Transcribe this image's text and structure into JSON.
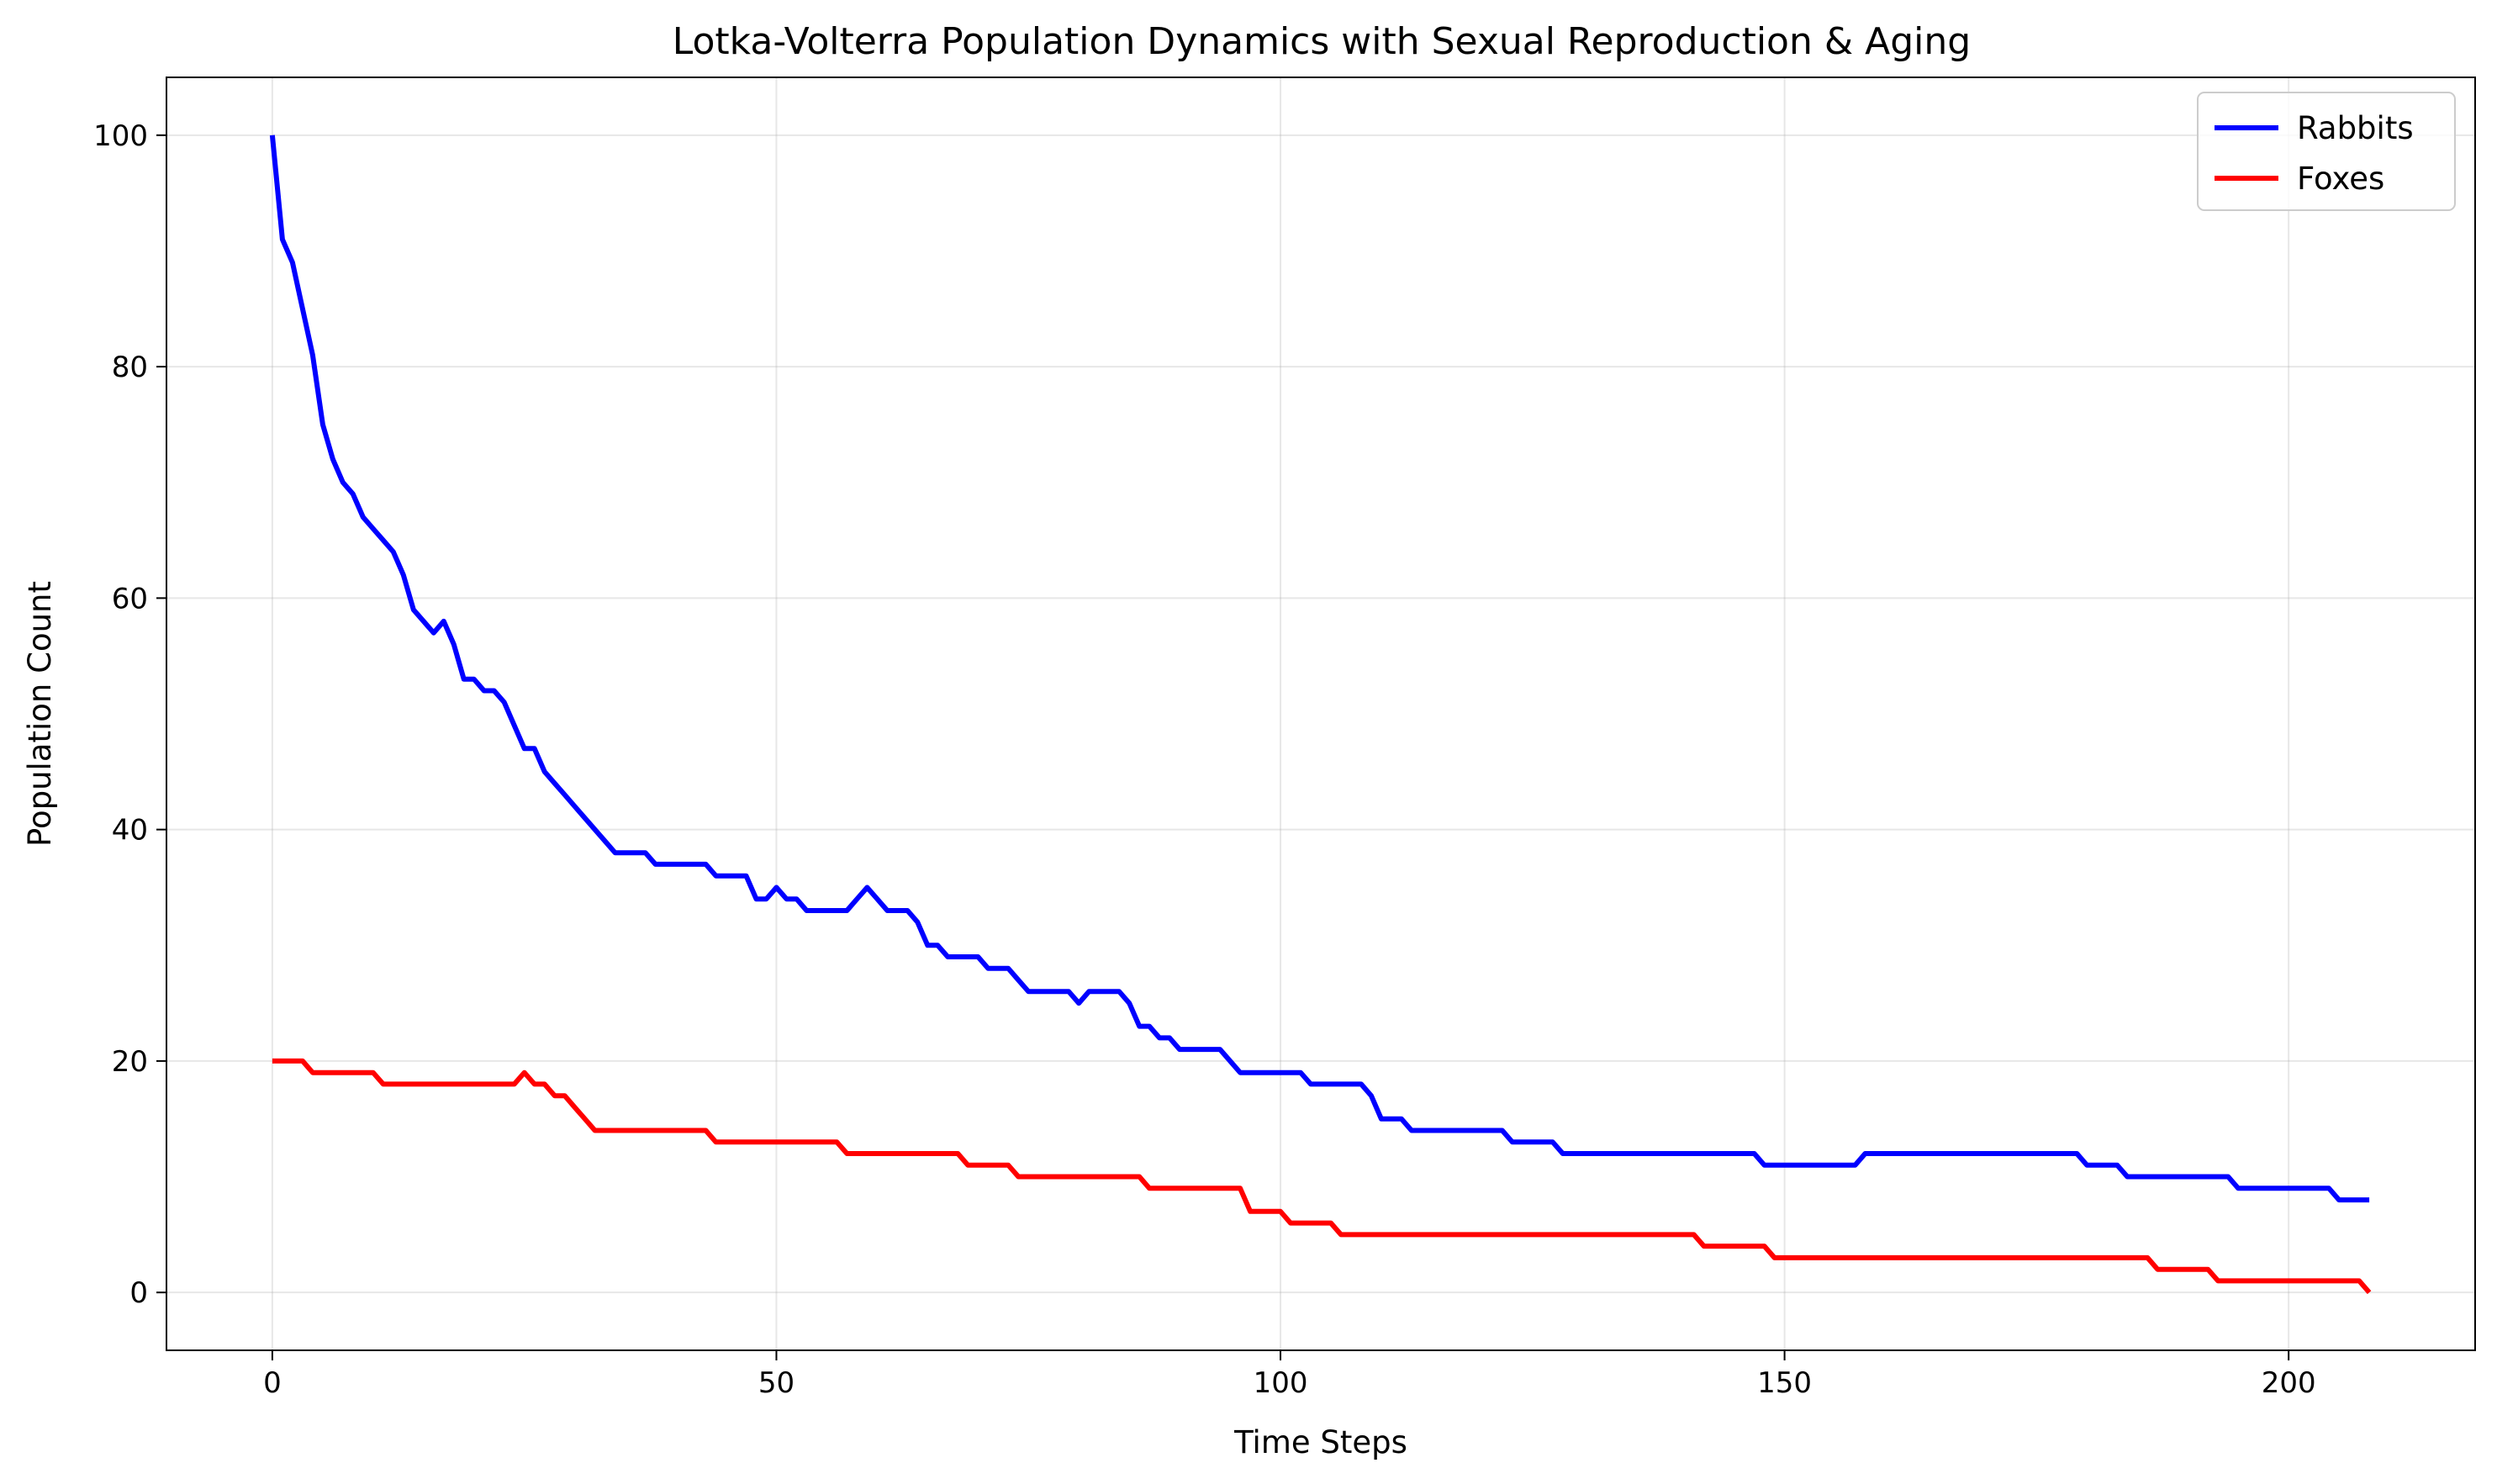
{
  "chart_data": {
    "type": "line",
    "title": "Lotka-Volterra Population Dynamics with Sexual Reproduction & Aging",
    "xlabel": "Time Steps",
    "ylabel": "Population Count",
    "xlim": [
      -10.5,
      218.5
    ],
    "ylim": [
      -5,
      105
    ],
    "xticks": [
      0,
      50,
      100,
      150,
      200
    ],
    "yticks": [
      0,
      20,
      40,
      60,
      80,
      100
    ],
    "grid": true,
    "legend_position": "top-right",
    "series": [
      {
        "name": "Rabbits",
        "color": "#0000ff",
        "points": [
          [
            0,
            100
          ],
          [
            1,
            91
          ],
          [
            2,
            89
          ],
          [
            3,
            85
          ],
          [
            4,
            81
          ],
          [
            5,
            75
          ],
          [
            6,
            72
          ],
          [
            7,
            70
          ],
          [
            8,
            69
          ],
          [
            9,
            67
          ],
          [
            10,
            66
          ],
          [
            11,
            65
          ],
          [
            12,
            64
          ],
          [
            13,
            62
          ],
          [
            14,
            59
          ],
          [
            15,
            58
          ],
          [
            16,
            57
          ],
          [
            17,
            58
          ],
          [
            18,
            56
          ],
          [
            19,
            53
          ],
          [
            20,
            53
          ],
          [
            21,
            52
          ],
          [
            22,
            52
          ],
          [
            23,
            51
          ],
          [
            24,
            49
          ],
          [
            25,
            47
          ],
          [
            26,
            47
          ],
          [
            27,
            45
          ],
          [
            28,
            44
          ],
          [
            29,
            43
          ],
          [
            30,
            42
          ],
          [
            31,
            41
          ],
          [
            32,
            40
          ],
          [
            33,
            39
          ],
          [
            34,
            38
          ],
          [
            37,
            38
          ],
          [
            38,
            37
          ],
          [
            43,
            37
          ],
          [
            44,
            36
          ],
          [
            47,
            36
          ],
          [
            48,
            34
          ],
          [
            49,
            34
          ],
          [
            50,
            35
          ],
          [
            51,
            34
          ],
          [
            52,
            34
          ],
          [
            53,
            33
          ],
          [
            57,
            33
          ],
          [
            58,
            34
          ],
          [
            59,
            35
          ],
          [
            60,
            34
          ],
          [
            61,
            33
          ],
          [
            63,
            33
          ],
          [
            64,
            32
          ],
          [
            65,
            30
          ],
          [
            66,
            30
          ],
          [
            67,
            29
          ],
          [
            70,
            29
          ],
          [
            71,
            28
          ],
          [
            73,
            28
          ],
          [
            74,
            27
          ],
          [
            75,
            26
          ],
          [
            79,
            26
          ],
          [
            80,
            25
          ],
          [
            81,
            26
          ],
          [
            84,
            26
          ],
          [
            85,
            25
          ],
          [
            86,
            23
          ],
          [
            87,
            23
          ],
          [
            88,
            22
          ],
          [
            89,
            22
          ],
          [
            90,
            21
          ],
          [
            94,
            21
          ],
          [
            95,
            20
          ],
          [
            96,
            19
          ],
          [
            102,
            19
          ],
          [
            103,
            18
          ],
          [
            108,
            18
          ],
          [
            109,
            17
          ],
          [
            110,
            15
          ],
          [
            112,
            15
          ],
          [
            113,
            14
          ],
          [
            122,
            14
          ],
          [
            123,
            13
          ],
          [
            127,
            13
          ],
          [
            128,
            12
          ],
          [
            147,
            12
          ],
          [
            148,
            11
          ],
          [
            157,
            11
          ],
          [
            158,
            12
          ],
          [
            179,
            12
          ],
          [
            180,
            11
          ],
          [
            183,
            11
          ],
          [
            184,
            10
          ],
          [
            194,
            10
          ],
          [
            195,
            9
          ],
          [
            204,
            9
          ],
          [
            205,
            8
          ],
          [
            208,
            8
          ]
        ]
      },
      {
        "name": "Foxes",
        "color": "#ff0000",
        "points": [
          [
            0,
            20
          ],
          [
            3,
            20
          ],
          [
            4,
            19
          ],
          [
            10,
            19
          ],
          [
            11,
            18
          ],
          [
            24,
            18
          ],
          [
            25,
            19
          ],
          [
            26,
            18
          ],
          [
            27,
            18
          ],
          [
            28,
            17
          ],
          [
            29,
            17
          ],
          [
            30,
            16
          ],
          [
            31,
            15
          ],
          [
            32,
            14
          ],
          [
            43,
            14
          ],
          [
            44,
            13
          ],
          [
            56,
            13
          ],
          [
            57,
            12
          ],
          [
            68,
            12
          ],
          [
            69,
            11
          ],
          [
            73,
            11
          ],
          [
            74,
            10
          ],
          [
            86,
            10
          ],
          [
            87,
            9
          ],
          [
            96,
            9
          ],
          [
            97,
            7
          ],
          [
            100,
            7
          ],
          [
            101,
            6
          ],
          [
            105,
            6
          ],
          [
            106,
            5
          ],
          [
            141,
            5
          ],
          [
            142,
            4
          ],
          [
            148,
            4
          ],
          [
            149,
            3
          ],
          [
            186,
            3
          ],
          [
            187,
            2
          ],
          [
            192,
            2
          ],
          [
            193,
            1
          ],
          [
            207,
            1
          ],
          [
            208,
            0
          ]
        ]
      }
    ]
  }
}
